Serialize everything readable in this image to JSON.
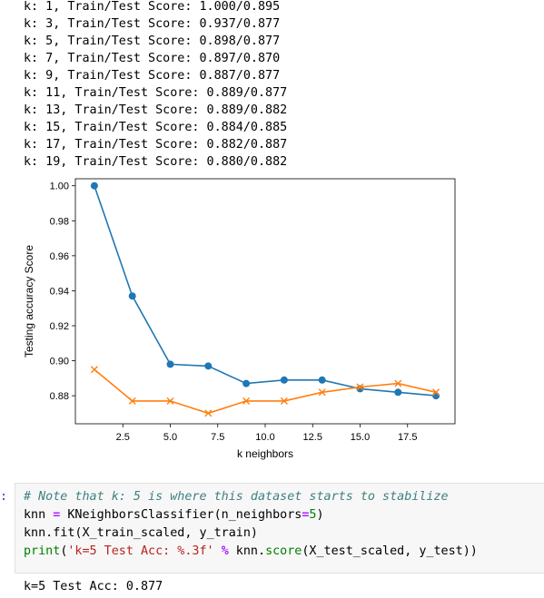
{
  "output_lines": [
    "k: 1, Train/Test Score: 1.000/0.895",
    "k: 3, Train/Test Score: 0.937/0.877",
    "k: 5, Train/Test Score: 0.898/0.877",
    "k: 7, Train/Test Score: 0.897/0.870",
    "k: 9, Train/Test Score: 0.887/0.877",
    "k: 11, Train/Test Score: 0.889/0.877",
    "k: 13, Train/Test Score: 0.889/0.882",
    "k: 15, Train/Test Score: 0.884/0.885",
    "k: 17, Train/Test Score: 0.882/0.887",
    "k: 19, Train/Test Score: 0.880/0.882"
  ],
  "chart_data": {
    "type": "line",
    "xlabel": "k neighbors",
    "ylabel": "Testing accuracy Score",
    "xlim": [
      0,
      20
    ],
    "ylim": [
      0.864,
      1.004
    ],
    "x_ticks": [
      "2.5",
      "5.0",
      "7.5",
      "10.0",
      "12.5",
      "15.0",
      "17.5"
    ],
    "x_tick_values": [
      2.5,
      5.0,
      7.5,
      10.0,
      12.5,
      15.0,
      17.5
    ],
    "y_ticks": [
      "0.88",
      "0.90",
      "0.92",
      "0.94",
      "0.96",
      "0.98",
      "1.00"
    ],
    "y_tick_values": [
      0.88,
      0.9,
      0.92,
      0.94,
      0.96,
      0.98,
      1.0
    ],
    "x": [
      1,
      3,
      5,
      7,
      9,
      11,
      13,
      15,
      17,
      19
    ],
    "series": [
      {
        "values": [
          1.0,
          0.937,
          0.898,
          0.897,
          0.887,
          0.889,
          0.889,
          0.884,
          0.882,
          0.88
        ],
        "color": "#1f77b4",
        "marker": "o"
      },
      {
        "values": [
          0.895,
          0.877,
          0.877,
          0.87,
          0.877,
          0.877,
          0.882,
          0.885,
          0.887,
          0.882
        ],
        "color": "#ff7f0e",
        "marker": "x"
      }
    ]
  },
  "cell": {
    "prompt": ":",
    "comment": "# Note that k: 5 is where this dataset starts to stabilize",
    "line2": {
      "var": "knn ",
      "eq": "=",
      "call": " KNeighborsClassifier(n_neighbors",
      "eq2": "=",
      "num": "5",
      "close": ")"
    },
    "line3": "knn.fit(X_train_scaled, y_train)",
    "line4": {
      "fn": "print",
      "open": "(",
      "str": "'k=5 Test Acc: %.3f'",
      "sp": " ",
      "op": "%",
      "rest": " knn.",
      "method": "score",
      "tail": "(X_test_scaled, y_test))"
    }
  },
  "result": "k=5 Test Acc: 0.877"
}
